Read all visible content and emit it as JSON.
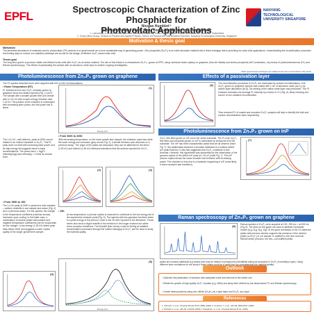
{
  "header": {
    "logo_left": "EPFL",
    "logo_right": "NANYANG TECHNOLOGICAL UNIVERSITY SINGAPORE",
    "title_line1": "Spectroscopic Characterization of Zinc Phosphide for",
    "title_line2": "Photovoltaic Applications",
    "author_line1": "Nicolas Humblot¹²",
    "author_line2": "Supervision: Elias Stutz¹, Anna Fontcuberta i Morral¹, Xiong Qihua²",
    "affil_1": "1. Laboratory of Semiconductor Materials, Institute of Materials, École Polytechnique Fédérale de Lausanne, Lausanne, Switzerland",
    "affil_2": "2. Xiong Qihua Group, Division of Physics and Applied Physics, School of Physical and Mathematical Sciences, Nanyang Technological University, Singapore"
  },
  "motivation": {
    "band": "Motivation & thesis goal",
    "label_motivation": "Motivation",
    "text_motivation": "The terrestrial abundance of materials used in photovoltaic (PV) devices is of great interest as a more sustainable way of generating power. Zinc phosphide (Zn₃P₂) is an earth abundant material with a direct bandgap that is promising for solar cells applications. Understanding the recombination processes and finding ways to reduce non-radiative pathways are crucial for the design of efficient Zn₃P₂ based solar cells.",
    "label_thesis": "Thesis goal",
    "text_thesis": "The long term goal is to produce stable and efficient solar cells with Zn₃P₂ as an active material. The aim of this thesis is to characterize Zn₃P₂—grown at EPFL using molecular beam epitaxy on graphene (Van der Waals) and indium phosphide (InP) substrates—by means of photoluminescence (PL) and Raman spectroscopy¹. The effects of passivating the surface with an aluminum oxide layer is another ongoing investigation.",
    "note": "* Both spectroscopic techniques are widely known and not described in this poster"
  },
  "pl_graphene": {
    "band": "Photoluminescence from Zn₃P₂ grown on graphene",
    "intro": "The PL spectra described here were acquired with 532 or 633 nm illuminations.",
    "sub_rt": "• Room Temperature (RT)",
    "text_rt": "PL emissions from two Zn₃P₂ samples grown on graphene show two distinct spectra (Fig. 1) at RT. The sample with a smaller growth time and overall with a 1.51 eV with a lower-energy shoulder near 1.42 eV. The position of the emission is unchanged with increasing laser power, and the power law is linear.",
    "sub_lt": "• From 300K to 200K",
    "text_lt": "With decreasing temperature, on the lower growth time sample, the emission quenches while the lower energy one increases (grey arrows Fig. 2). A similar behavior was observed on a previous study². The origin of the peaks are discussed, they can be attributed to the direct (1.50 eV) and indirect (1.38 eV) interband transitions that the authors reported for Zn₃P₂.",
    "text_lt2": "The 1.41 eV—well defined—peak at 200K can be related to an indirect transition in Zn₃P₂. This PL peak does not shift with increasing laser power and its high energy tail suggests band-to-band recombinations. The power law k = log(PL intensity)/log(Laser intensity) ≈ 1 finds an exciton level.",
    "sub_10k": "• From 150K to 10K",
    "text_10k": "The 1.4 eV peak at 150K is present in both samples—seldom redshifts in one sample and arises (Fig. 3) as in a previous study². For the spectra, the change in the temperature coefficient (red/blue arrows) increases upon cooling. In this latter case, a combination of several peaks with positive and negative temperature coefficients can be responsible for the change³. A low energy (1.25 eV) defect peak rises below 150K and suggests a lower crystal quality of the longer growth time sample.",
    "sub_10k2": "• 10K",
    "text_10k2": "At low temperature, a phonon replica is expected to contribute to the low energy tail of the asymmetric emission peak (Fig. 5). The spectra with two gaussian functions leads to a peak energy of the phonon, close to the 45 meV reported in the literature³ⁱ. Power series also show a slight redshift of the emission in the longer excitons but rather donor-acceptor transitions. The bluestift (blue arrow) could be hinting at radiative recombination processes through the indirect bandgap of Zn₃P₂ and be used to study the material quality.",
    "fig1_label": "(1)",
    "fig2_label": "(2)",
    "fig3_label": "(3)",
    "fig4_label": "(4)",
    "fig5_label": "(5)",
    "x_axis": "Energy (eV)",
    "y_axis": "PL intensity (a.u.)"
  },
  "passivation": {
    "band": "Effects of a passivation layer",
    "text1": "The recombination processes in Zn₃P₂ are dominated by surface recombinations. One Zn₃P₂ grown on graphene sample was coated with 1 nm of aluminum oxide (Al₂O₃) by atomic layer deposition (ALD). No etching of the native oxide layer was performed. The PL emission increases the average PL intensity by a factor of 3.3 (Fig. 6), likely reducing one source of non-radiative recombination.",
    "text2": "Time resolved PL of coated and uncoated Zn₃P₂ samples will help to identify the bulk and surface recombination rates respectively.",
    "fig6_label": "(6)"
  },
  "pl_inp": {
    "band": "Photoluminescence from Zn₃P₂ grown on InP",
    "text": "Zn₃P₂ thin films grown on InP cover the whole substrate. The PL from Zn₃P₂ thin films and nanowires grown on InP is dominated by emissions from the substrate. The InP has three characteristic peaks that we all observe (inset Fig. 7). We additionally observed a shoulder attributed to a shallow defect (eV peak that lies). It was first suggested that Zn₃P₂ contribute to this shoulder. However, this hypothesis was discredited by the observation of the grooves replica of the defect InP peak at 1.34 eV (inset Fig. 7). This InP phonon replica shows the same shoulder and behavior with increasing power. The shoulder is thus due to a transition happening in InP (most likely a donor-acceptor pair transition).",
    "fig7_label": "(7)"
  },
  "raman": {
    "band": "Raman spectroscopy of Zn₃P₂ grown on graphene",
    "text1": "Raman spectra of Zn₃P₂ were acquired at 10K, 295 cm⁻¹ at 633 nm (Fig. 8). The lines on the graph are used to attribute irreducible modes (A₁g, B₁g, B₂g, Eg)⁴ to the good correlation of the 13 observed peaks with previous studies supports the presence of the desired phase (α-Zn₃P₂) in our sample. In addition to the nine common Raman active phonons, the two—unmodified peaks",
    "text2": "peaks are unusual additional A₁g modes that may be related to phosphorus interstitials acting as acceptors in Zn₃P₂ (nominally p-type). Using different laser excitations for the study if these peaks could be a useful tool for understanding the material quality.",
    "fig8_label": "(8)"
  },
  "outlook": {
    "band": "Outlook",
    "item1": "Optimize the passivation of surfaces with adequate oxide and removal of the native one.",
    "item2": "Relate the growth of high quality Zn₃P₂ crystals (e.g. NWs) and study their defects by low temperature PL and Raman spectroscopy.",
    "item3": "Create heterojunctions using zinc nitride (Zn₃N₂) as n-type layer and Zn₃P₂ as p-type."
  },
  "references": {
    "band": "References",
    "ref1": "1. Schmidt, T. et al., Physical Review B 45, 8989 (1992)   3. Kroscher, T. et al., APL 99, 8602-8617 (1982)",
    "ref2": "2. Kimball, G. et al., APL 95, 112103 (2009)   4. Pangilinan, G. et al., Physical Review B 44, (1991)"
  }
}
